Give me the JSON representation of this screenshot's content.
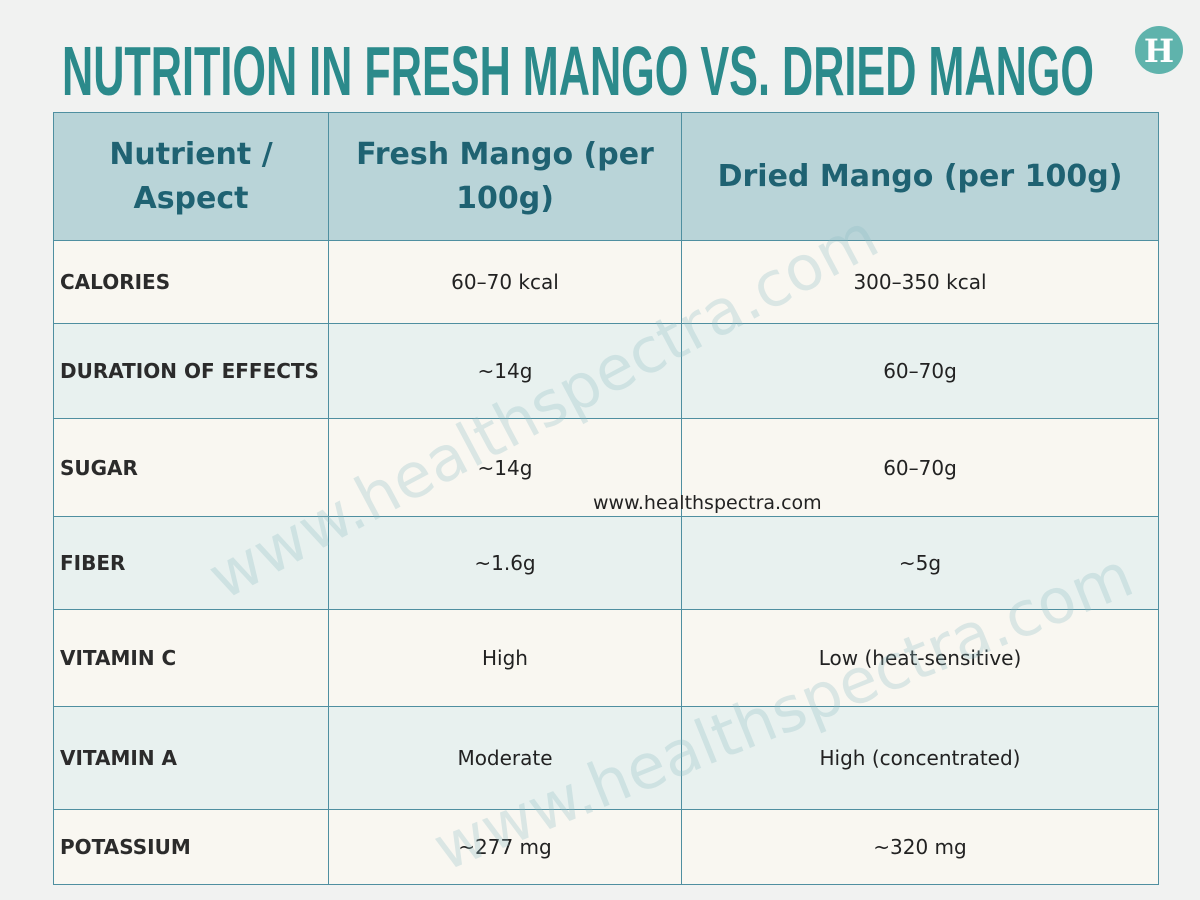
{
  "header": {
    "title": "NUTRITION IN FRESH MANGO VS. DRIED MANGO",
    "logo": "H"
  },
  "table": {
    "columns": [
      "Nutrient / Aspect",
      "Fresh Mango (per 100g)",
      "Dried Mango (per 100g)"
    ],
    "rows": [
      [
        "CALORIES",
        "60–70 kcal",
        "300–350 kcal"
      ],
      [
        "DURATION OF EFFECTS",
        "~14g",
        "60–70g"
      ],
      [
        "SUGAR",
        "~14g",
        "60–70g"
      ],
      [
        "FIBER",
        "~1.6g",
        "~5g"
      ],
      [
        "VITAMIN C",
        "High",
        "Low (heat-sensitive)"
      ],
      [
        "VITAMIN A",
        "Moderate",
        "High (concentrated)"
      ],
      [
        "POTASSIUM",
        "~277 mg",
        "~320 mg"
      ]
    ]
  },
  "watermarks": [
    "www.healthspectra.com",
    "www.healthspectra.com",
    "www.healthspectra.com"
  ]
}
